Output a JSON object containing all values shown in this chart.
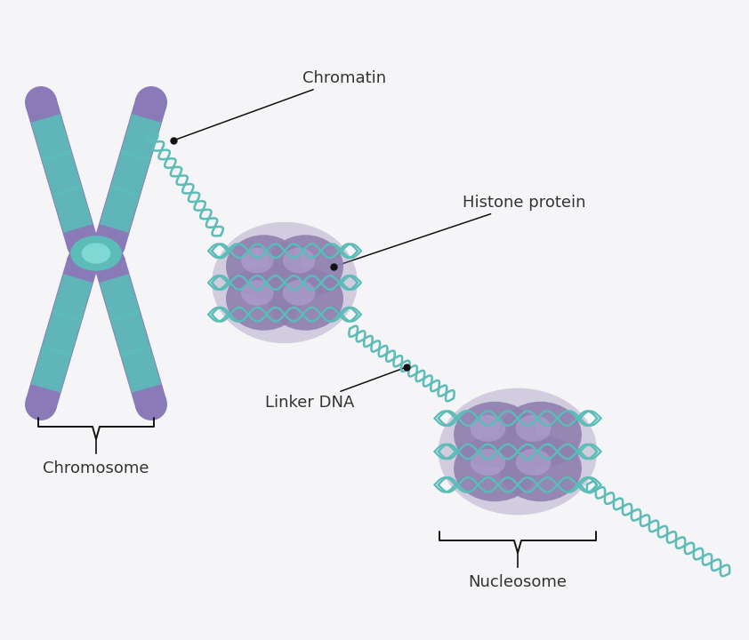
{
  "background_color": "#f5f5f7",
  "chromosome_color": "#8b7ab8",
  "chromosome_stripe_color": "#5bbcb8",
  "centromere_color": "#5bbcb8",
  "nucleosome_color": "#9080b0",
  "nucleosome_highlight": "#b8a8d8",
  "nucleosome_shadow": "#6a5a90",
  "dna_color": "#5bbcb8",
  "label_color": "#333333",
  "annotation_line_color": "#111111",
  "label_fontsize": 13,
  "chromatin_label": "Chromatin",
  "chromosome_label": "Chromosome",
  "histone_label": "Histone protein",
  "linker_label": "Linker DNA",
  "nucleosome_label": "Nucleosome",
  "figsize": [
    8.42,
    7.2
  ],
  "dpi": 100
}
